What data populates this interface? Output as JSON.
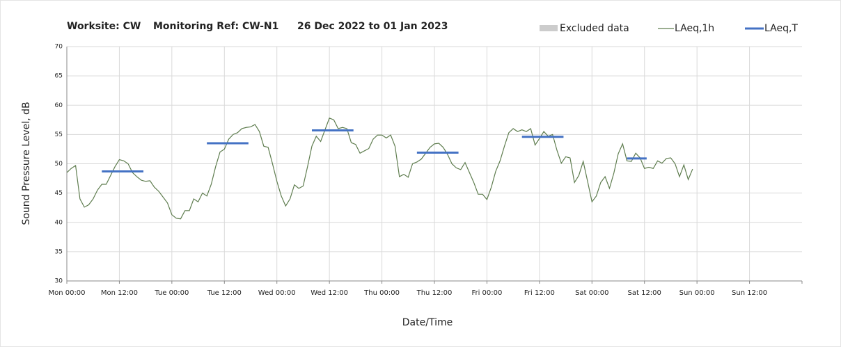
{
  "chart_data": {
    "type": "line",
    "title": [
      "Worksite: CW",
      "Monitoring Ref: CW-N1",
      "26 Dec 2022 to 01 Jan 2023"
    ],
    "xlabel": "Date/Time",
    "ylabel": "Sound Pressure Level, dB",
    "xlim": [
      0,
      168
    ],
    "xticks": [
      {
        "value": 0,
        "label": "Mon 00:00"
      },
      {
        "value": 12,
        "label": "Mon 12:00"
      },
      {
        "value": 24,
        "label": "Tue 00:00"
      },
      {
        "value": 36,
        "label": "Tue 12:00"
      },
      {
        "value": 48,
        "label": "Wed 00:00"
      },
      {
        "value": 60,
        "label": "Wed 12:00"
      },
      {
        "value": 72,
        "label": "Thu 00:00"
      },
      {
        "value": 84,
        "label": "Thu 12:00"
      },
      {
        "value": 96,
        "label": "Fri 00:00"
      },
      {
        "value": 108,
        "label": "Fri 12:00"
      },
      {
        "value": 120,
        "label": "Sat 00:00"
      },
      {
        "value": 132,
        "label": "Sat 12:00"
      },
      {
        "value": 144,
        "label": "Sun 00:00"
      },
      {
        "value": 156,
        "label": "Sun 12:00"
      }
    ],
    "ylim": [
      30,
      70
    ],
    "yticks": [
      30,
      35,
      40,
      45,
      50,
      55,
      60,
      65,
      70
    ],
    "grid": true,
    "legend": "top-right",
    "excluded": {
      "name": "Excluded data",
      "color": "#cccccc"
    },
    "series": [
      {
        "name": "LAeq,1h",
        "color": "#5f7d4f",
        "x": [
          0,
          1,
          2,
          3,
          4,
          5,
          6,
          7,
          8,
          9,
          10,
          11,
          12,
          13,
          14,
          15,
          16,
          17,
          18,
          19,
          20,
          21,
          22,
          23,
          24,
          25,
          26,
          27,
          28,
          29,
          30,
          31,
          32,
          33,
          34,
          35,
          36,
          37,
          38,
          39,
          40,
          41,
          42,
          43,
          44,
          45,
          46,
          47,
          48,
          49,
          50,
          51,
          52,
          53,
          54,
          55,
          56,
          57,
          58,
          59,
          60,
          61,
          62,
          63,
          64,
          65,
          66,
          67,
          68,
          69,
          70,
          71,
          72,
          73,
          74,
          75,
          76,
          77,
          78,
          79,
          80,
          81,
          82,
          83,
          84,
          85,
          86,
          87,
          88,
          89,
          90,
          91,
          92,
          93,
          94,
          95,
          96,
          97,
          98,
          99,
          100,
          101,
          102,
          103,
          104,
          105,
          106,
          107,
          108,
          109,
          110,
          111,
          112,
          113,
          114,
          115,
          116,
          117,
          118,
          119,
          120,
          121,
          122,
          123,
          124,
          125,
          126,
          127,
          128,
          129,
          130,
          131,
          132,
          133,
          134,
          135,
          136,
          137,
          138,
          139,
          140,
          141,
          142,
          143
        ],
        "values": [
          48.5,
          49.2,
          49.7,
          44,
          42.6,
          43,
          44,
          45.5,
          46.5,
          46.5,
          48,
          49.5,
          50.7,
          50.5,
          50,
          48.5,
          47.8,
          47.2,
          47,
          47.1,
          46,
          45.3,
          44.3,
          43.3,
          41.3,
          40.7,
          40.6,
          42,
          42,
          44,
          43.5,
          45,
          44.5,
          46.5,
          49.5,
          52,
          52.5,
          54.2,
          55,
          55.3,
          56,
          56.2,
          56.3,
          56.7,
          55.5,
          53,
          52.8,
          50,
          47,
          44.5,
          42.8,
          44,
          46.4,
          45.8,
          46.2,
          49.5,
          53,
          54.7,
          53.8,
          55.8,
          57.8,
          57.5,
          56,
          56.2,
          56,
          53.6,
          53.3,
          51.8,
          52.2,
          52.6,
          54.2,
          54.9,
          54.9,
          54.4,
          54.9,
          53,
          47.8,
          48.2,
          47.7,
          50,
          50.3,
          50.8,
          51.8,
          52.8,
          53.4,
          53.5,
          52.8,
          51.6,
          50,
          49.3,
          49,
          50.2,
          48.5,
          46.8,
          44.8,
          44.8,
          43.9,
          46,
          48.7,
          50.5,
          53,
          55.3,
          56,
          55.5,
          55.8,
          55.5,
          56,
          53.2,
          54.3,
          55.5,
          54.7,
          55,
          52.3,
          50.1,
          51.2,
          51,
          46.8,
          48,
          50.4,
          47,
          43.5,
          44.5,
          46.8,
          47.8,
          45.8,
          48.4,
          51.7,
          53.4,
          50.5,
          50.4,
          51.8,
          51,
          49.2,
          49.4,
          49.2,
          50.5,
          50.1,
          50.9,
          51,
          50,
          47.8,
          49.8,
          47.3,
          49.1
        ]
      },
      {
        "name": "LAeq,T",
        "color": "#4472c4",
        "x_start": [
          8,
          32,
          56,
          80,
          104,
          128
        ],
        "x_end": [
          17.5,
          41.5,
          65.5,
          89.5,
          113.5,
          132.5
        ],
        "values": [
          48.7,
          53.5,
          55.7,
          51.9,
          54.6,
          50.9
        ]
      }
    ]
  }
}
